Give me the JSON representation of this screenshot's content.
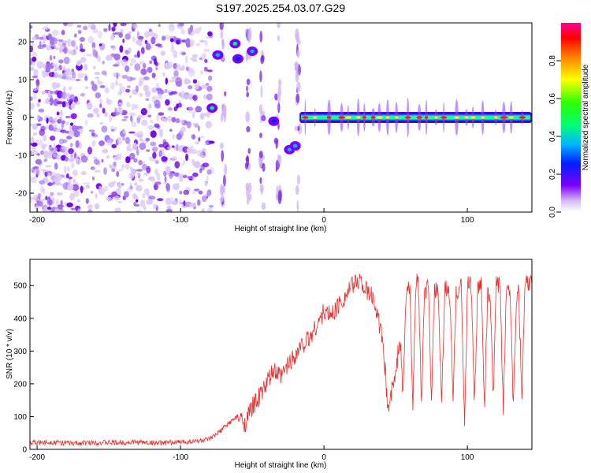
{
  "figure": {
    "title": "S197.2025.254.03.07.G29"
  },
  "colors": {
    "snr_line": "#e53030",
    "axes": "#000000",
    "scatter_low": "#d9c2f2",
    "scatter_high": "#6a00e8",
    "colormap": [
      "#ffffff",
      "#c8a8f0",
      "#6e00ff",
      "#0030ff",
      "#00c8ff",
      "#00ff60",
      "#ffff00",
      "#ff8000",
      "#ff0000",
      "#ff0099"
    ]
  },
  "chart_data": [
    {
      "type": "heatmap",
      "title": "S197.2025.254.03.07.G29",
      "xlabel": "Height of straight line (km)",
      "ylabel": "Frequency (Hz)",
      "xlim": [
        -205,
        145
      ],
      "ylim": [
        -25,
        25
      ],
      "xticks": [
        -200,
        -100,
        0,
        100
      ],
      "xtick_labels": [
        "-200",
        "-100",
        "0",
        "100"
      ],
      "yticks": [
        -20,
        -10,
        0,
        10,
        20
      ],
      "ytick_labels": [
        "-20",
        "-10",
        "0",
        "10",
        "20"
      ],
      "grid": false,
      "noise_region_x": [
        -205,
        -78
      ],
      "blobs": [
        {
          "x": -78,
          "y": 2.5,
          "amp": 0.5
        },
        {
          "x": -74,
          "y": 16.5,
          "amp": 0.45
        },
        {
          "x": -62,
          "y": 19.5,
          "amp": 0.5
        },
        {
          "x": -60,
          "y": 15.5,
          "amp": 0.3
        },
        {
          "x": -50,
          "y": 17.5,
          "amp": 0.45
        },
        {
          "x": -35,
          "y": -1.0,
          "amp": 0.35
        },
        {
          "x": -24,
          "y": -8.5,
          "amp": 0.45
        },
        {
          "x": -20,
          "y": -7.5,
          "amp": 0.4
        }
      ],
      "vertical_streaks_x": [
        -70,
        -53,
        -43,
        -32,
        -18
      ],
      "tone": {
        "y": 0,
        "x_range": [
          -17,
          145
        ],
        "amp": 0.95
      },
      "colorbar": {
        "label": "Normalized spectral amplitude",
        "range": [
          0.0,
          1.0
        ],
        "ticks": [
          0.0,
          0.2,
          0.4,
          0.6,
          0.8
        ],
        "tick_labels": [
          "0.0",
          "0.2",
          "0.4",
          "0.6",
          "0.8"
        ]
      }
    },
    {
      "type": "line",
      "xlabel": "Height of straight line (km)",
      "ylabel": "SNR (10 * v/v)",
      "xlim": [
        -205,
        145
      ],
      "ylim": [
        0,
        580
      ],
      "xticks": [
        -200,
        -100,
        0,
        100
      ],
      "xtick_labels": [
        "-200",
        "-100",
        "0",
        "100"
      ],
      "yticks": [
        0,
        100,
        200,
        300,
        400,
        500
      ],
      "ytick_labels": [
        "0",
        "100",
        "200",
        "300",
        "400",
        "500"
      ],
      "grid": false,
      "series": [
        {
          "x": [
            -205,
            -190,
            -175,
            -160,
            -145,
            -130,
            -115,
            -100,
            -90,
            -80,
            -75,
            -70,
            -65,
            -60,
            -55,
            -50,
            -45,
            -40,
            -35,
            -30,
            -25,
            -20,
            -15,
            -10,
            -5,
            0,
            5,
            10,
            15,
            20,
            25,
            30,
            35,
            40,
            45,
            50,
            55,
            60,
            65,
            70,
            75,
            80,
            85,
            90,
            95,
            100,
            105,
            110,
            115,
            120,
            125,
            130,
            135,
            140,
            145
          ],
          "y": [
            20,
            22,
            18,
            21,
            20,
            22,
            19,
            22,
            25,
            30,
            45,
            65,
            85,
            100,
            80,
            130,
            160,
            200,
            240,
            220,
            260,
            290,
            320,
            340,
            380,
            420,
            410,
            440,
            470,
            500,
            520,
            480,
            460,
            350,
            150,
            220,
            450,
            500,
            520,
            480,
            510,
            470,
            490,
            460,
            500,
            520,
            480,
            500,
            470,
            510,
            480,
            500,
            470,
            510,
            500
          ],
          "dropouts": [
            {
              "x": 45,
              "y": 130
            },
            {
              "x": 55,
              "y": 150
            },
            {
              "x": 62,
              "y": 140
            },
            {
              "x": 68,
              "y": 135
            },
            {
              "x": 75,
              "y": 140
            },
            {
              "x": 82,
              "y": 120
            },
            {
              "x": 90,
              "y": 150
            },
            {
              "x": 98,
              "y": 60
            },
            {
              "x": 105,
              "y": 140
            },
            {
              "x": 112,
              "y": 130
            },
            {
              "x": 118,
              "y": 150
            },
            {
              "x": 125,
              "y": 120
            },
            {
              "x": 132,
              "y": 140
            },
            {
              "x": 138,
              "y": 150
            }
          ]
        }
      ]
    }
  ]
}
